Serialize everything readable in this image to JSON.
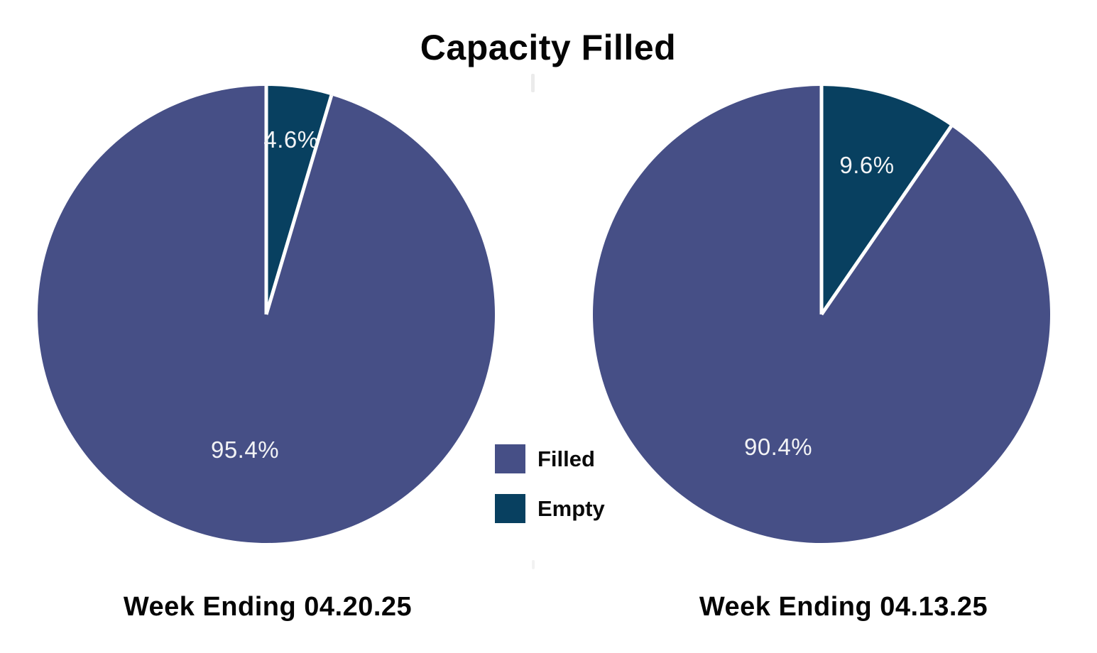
{
  "title": "Capacity Filled",
  "colors": {
    "filled": "#464f86",
    "empty": "#084060",
    "divider": "#ffffff",
    "percent_label": "#f2f3f5",
    "text": "#050505",
    "background": "#ffffff"
  },
  "legend": {
    "position": "center-between-pies",
    "items": [
      {
        "label": "Filled",
        "color": "#464f86"
      },
      {
        "label": "Empty",
        "color": "#084060"
      }
    ]
  },
  "chart_data": [
    {
      "type": "pie",
      "title": "Week Ending 04.20.25",
      "categories": [
        "Filled",
        "Empty"
      ],
      "values": [
        95.4,
        4.6
      ],
      "unit": "%",
      "autopct_labels": [
        "95.4%",
        "4.6%"
      ],
      "start": "12-oclock",
      "direction": "clockwise",
      "slice_colors": [
        "#464f86",
        "#084060"
      ],
      "label_color": "#f2f3f5"
    },
    {
      "type": "pie",
      "title": "Week Ending 04.13.25",
      "categories": [
        "Filled",
        "Empty"
      ],
      "values": [
        90.4,
        9.6
      ],
      "unit": "%",
      "autopct_labels": [
        "90.4%",
        "9.6%"
      ],
      "start": "12-oclock",
      "direction": "clockwise",
      "slice_colors": [
        "#464f86",
        "#084060"
      ],
      "label_color": "#f2f3f5"
    }
  ]
}
